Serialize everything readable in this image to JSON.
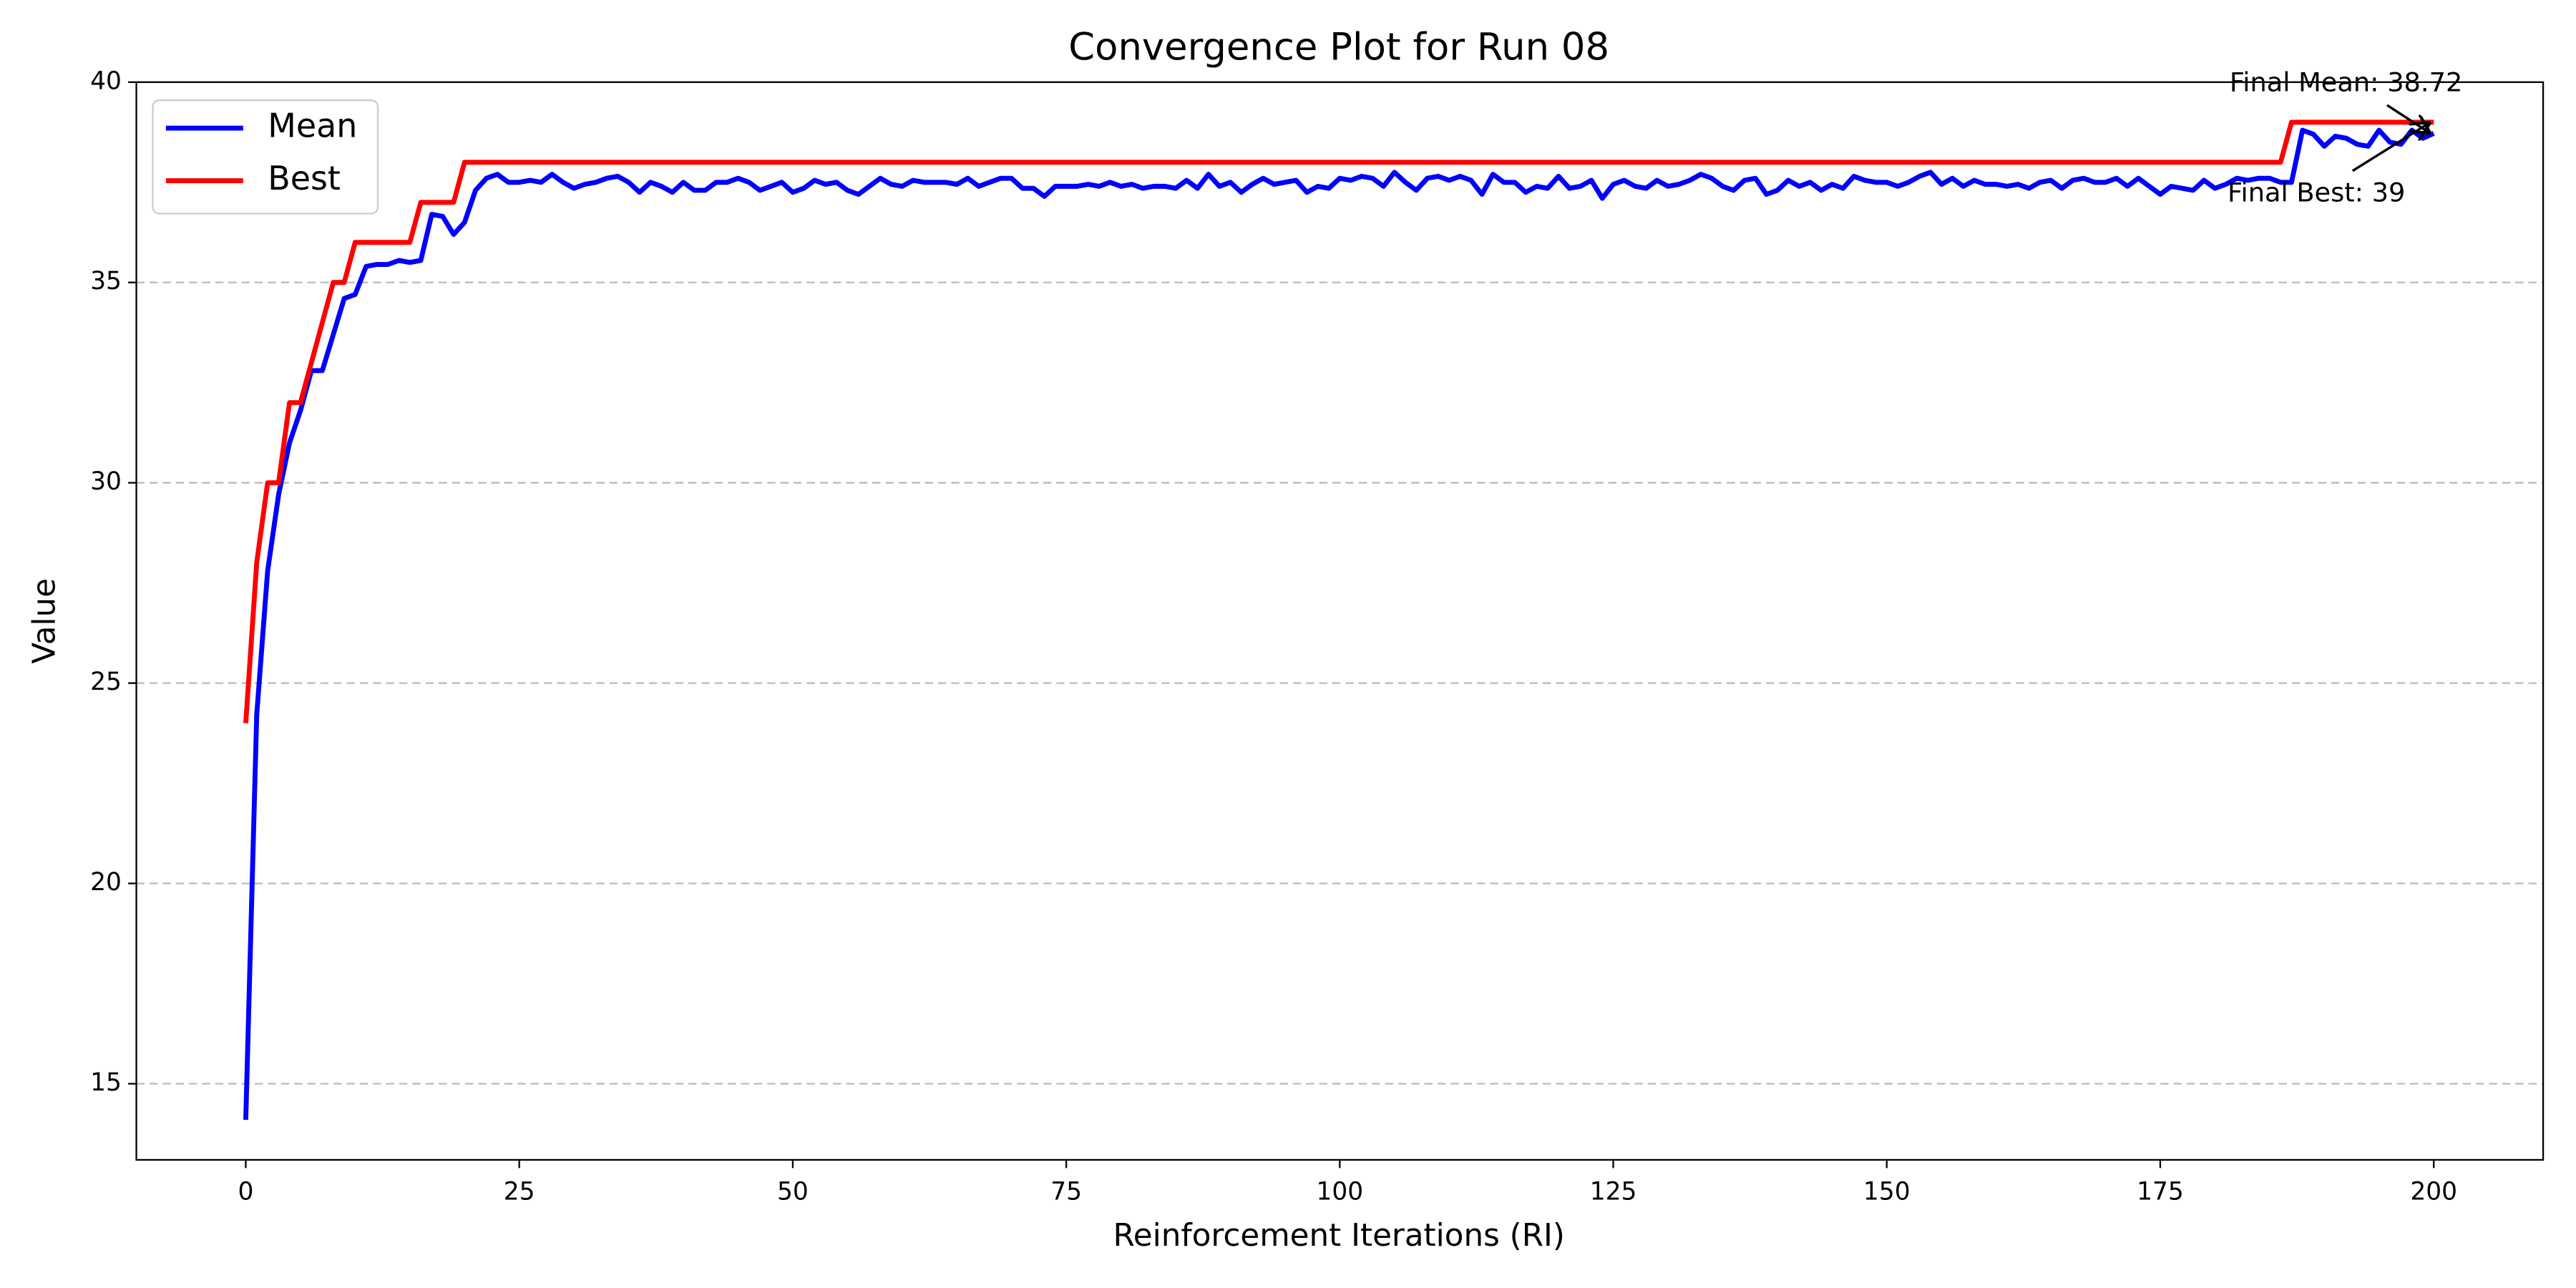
{
  "chart_data": {
    "type": "line",
    "title": "Convergence Plot for Run 08",
    "xlabel": "Reinforcement Iterations (RI)",
    "ylabel": "Value",
    "x": [
      0,
      1,
      2,
      3,
      4,
      5,
      6,
      7,
      8,
      9,
      10,
      11,
      12,
      13,
      14,
      15,
      16,
      17,
      18,
      19,
      20,
      21,
      22,
      23,
      24,
      25,
      26,
      27,
      28,
      29,
      30,
      31,
      32,
      33,
      34,
      35,
      36,
      37,
      38,
      39,
      40,
      41,
      42,
      43,
      44,
      45,
      46,
      47,
      48,
      49,
      50,
      51,
      52,
      53,
      54,
      55,
      56,
      57,
      58,
      59,
      60,
      61,
      62,
      63,
      64,
      65,
      66,
      67,
      68,
      69,
      70,
      71,
      72,
      73,
      74,
      75,
      76,
      77,
      78,
      79,
      80,
      81,
      82,
      83,
      84,
      85,
      86,
      87,
      88,
      89,
      90,
      91,
      92,
      93,
      94,
      95,
      96,
      97,
      98,
      99,
      100,
      101,
      102,
      103,
      104,
      105,
      106,
      107,
      108,
      109,
      110,
      111,
      112,
      113,
      114,
      115,
      116,
      117,
      118,
      119,
      120,
      121,
      122,
      123,
      124,
      125,
      126,
      127,
      128,
      129,
      130,
      131,
      132,
      133,
      134,
      135,
      136,
      137,
      138,
      139,
      140,
      141,
      142,
      143,
      144,
      145,
      146,
      147,
      148,
      149,
      150,
      151,
      152,
      153,
      154,
      155,
      156,
      157,
      158,
      159,
      160,
      161,
      162,
      163,
      164,
      165,
      166,
      167,
      168,
      169,
      170,
      171,
      172,
      173,
      174,
      175,
      176,
      177,
      178,
      179,
      180,
      181,
      182,
      183,
      184,
      185,
      186,
      187,
      188,
      189,
      190,
      191,
      192,
      193,
      194,
      195,
      196,
      197,
      198,
      199,
      200
    ],
    "series": [
      {
        "name": "Mean",
        "color": "#0000ff",
        "values": [
          14.1,
          24.2,
          27.8,
          29.7,
          31.0,
          31.8,
          32.8,
          32.8,
          33.7,
          34.6,
          34.7,
          35.4,
          35.45,
          35.45,
          35.55,
          35.5,
          35.55,
          36.7,
          36.65,
          36.2,
          36.5,
          37.3,
          37.6,
          37.7,
          37.5,
          37.5,
          37.55,
          37.5,
          37.7,
          37.5,
          37.35,
          37.45,
          37.5,
          37.6,
          37.65,
          37.5,
          37.25,
          37.5,
          37.4,
          37.25,
          37.5,
          37.3,
          37.3,
          37.5,
          37.5,
          37.6,
          37.5,
          37.3,
          37.4,
          37.5,
          37.25,
          37.35,
          37.55,
          37.45,
          37.5,
          37.3,
          37.2,
          37.4,
          37.6,
          37.45,
          37.4,
          37.55,
          37.5,
          37.5,
          37.5,
          37.45,
          37.6,
          37.4,
          37.5,
          37.6,
          37.6,
          37.35,
          37.35,
          37.15,
          37.4,
          37.4,
          37.4,
          37.45,
          37.4,
          37.5,
          37.4,
          37.45,
          37.35,
          37.4,
          37.4,
          37.35,
          37.55,
          37.35,
          37.7,
          37.4,
          37.5,
          37.25,
          37.45,
          37.6,
          37.45,
          37.5,
          37.55,
          37.25,
          37.4,
          37.35,
          37.6,
          37.55,
          37.65,
          37.6,
          37.4,
          37.75,
          37.5,
          37.3,
          37.6,
          37.65,
          37.55,
          37.65,
          37.55,
          37.2,
          37.7,
          37.5,
          37.5,
          37.25,
          37.4,
          37.35,
          37.65,
          37.35,
          37.4,
          37.55,
          37.1,
          37.45,
          37.55,
          37.4,
          37.35,
          37.55,
          37.4,
          37.45,
          37.55,
          37.7,
          37.6,
          37.4,
          37.3,
          37.55,
          37.6,
          37.2,
          37.3,
          37.55,
          37.4,
          37.5,
          37.3,
          37.45,
          37.35,
          37.65,
          37.55,
          37.5,
          37.5,
          37.4,
          37.5,
          37.65,
          37.75,
          37.45,
          37.6,
          37.4,
          37.55,
          37.45,
          37.45,
          37.4,
          37.45,
          37.35,
          37.5,
          37.55,
          37.35,
          37.55,
          37.6,
          37.5,
          37.5,
          37.6,
          37.4,
          37.6,
          37.4,
          37.2,
          37.4,
          37.35,
          37.3,
          37.55,
          37.35,
          37.45,
          37.6,
          37.55,
          37.6,
          37.6,
          37.5,
          37.5,
          38.8,
          38.7,
          38.4,
          38.65,
          38.6,
          38.45,
          38.4,
          38.8,
          38.5,
          38.45,
          38.8,
          38.6,
          38.72
        ]
      },
      {
        "name": "Best",
        "color": "#ff0000",
        "values": [
          24,
          28,
          30,
          30,
          32,
          32,
          33,
          34,
          35,
          35,
          36,
          36,
          36,
          36,
          36,
          36,
          37,
          37,
          37,
          37,
          38,
          38,
          38,
          38,
          38,
          38,
          38,
          38,
          38,
          38,
          38,
          38,
          38,
          38,
          38,
          38,
          38,
          38,
          38,
          38,
          38,
          38,
          38,
          38,
          38,
          38,
          38,
          38,
          38,
          38,
          38,
          38,
          38,
          38,
          38,
          38,
          38,
          38,
          38,
          38,
          38,
          38,
          38,
          38,
          38,
          38,
          38,
          38,
          38,
          38,
          38,
          38,
          38,
          38,
          38,
          38,
          38,
          38,
          38,
          38,
          38,
          38,
          38,
          38,
          38,
          38,
          38,
          38,
          38,
          38,
          38,
          38,
          38,
          38,
          38,
          38,
          38,
          38,
          38,
          38,
          38,
          38,
          38,
          38,
          38,
          38,
          38,
          38,
          38,
          38,
          38,
          38,
          38,
          38,
          38,
          38,
          38,
          38,
          38,
          38,
          38,
          38,
          38,
          38,
          38,
          38,
          38,
          38,
          38,
          38,
          38,
          38,
          38,
          38,
          38,
          38,
          38,
          38,
          38,
          38,
          38,
          38,
          38,
          38,
          38,
          38,
          38,
          38,
          38,
          38,
          38,
          38,
          38,
          38,
          38,
          38,
          38,
          38,
          38,
          38,
          38,
          38,
          38,
          38,
          38,
          38,
          38,
          38,
          38,
          38,
          38,
          38,
          38,
          38,
          38,
          38,
          38,
          38,
          38,
          38,
          38,
          38,
          38,
          38,
          38,
          38,
          38,
          39,
          39,
          39,
          39,
          39,
          39,
          39,
          39,
          39,
          39,
          39,
          39,
          39,
          39
        ]
      }
    ],
    "xlim": [
      -10,
      210
    ],
    "ylim": [
      13.1,
      40
    ],
    "xticks": [
      0,
      25,
      50,
      75,
      100,
      125,
      150,
      175,
      200
    ],
    "yticks": [
      15,
      20,
      25,
      30,
      35,
      40
    ],
    "grid": true,
    "legend": "upper left",
    "annotations": [
      {
        "text": "Final Mean: 38.72",
        "x": 200,
        "y": 38.72
      },
      {
        "text": "Final Best: 39",
        "x": 200,
        "y": 39
      }
    ]
  }
}
